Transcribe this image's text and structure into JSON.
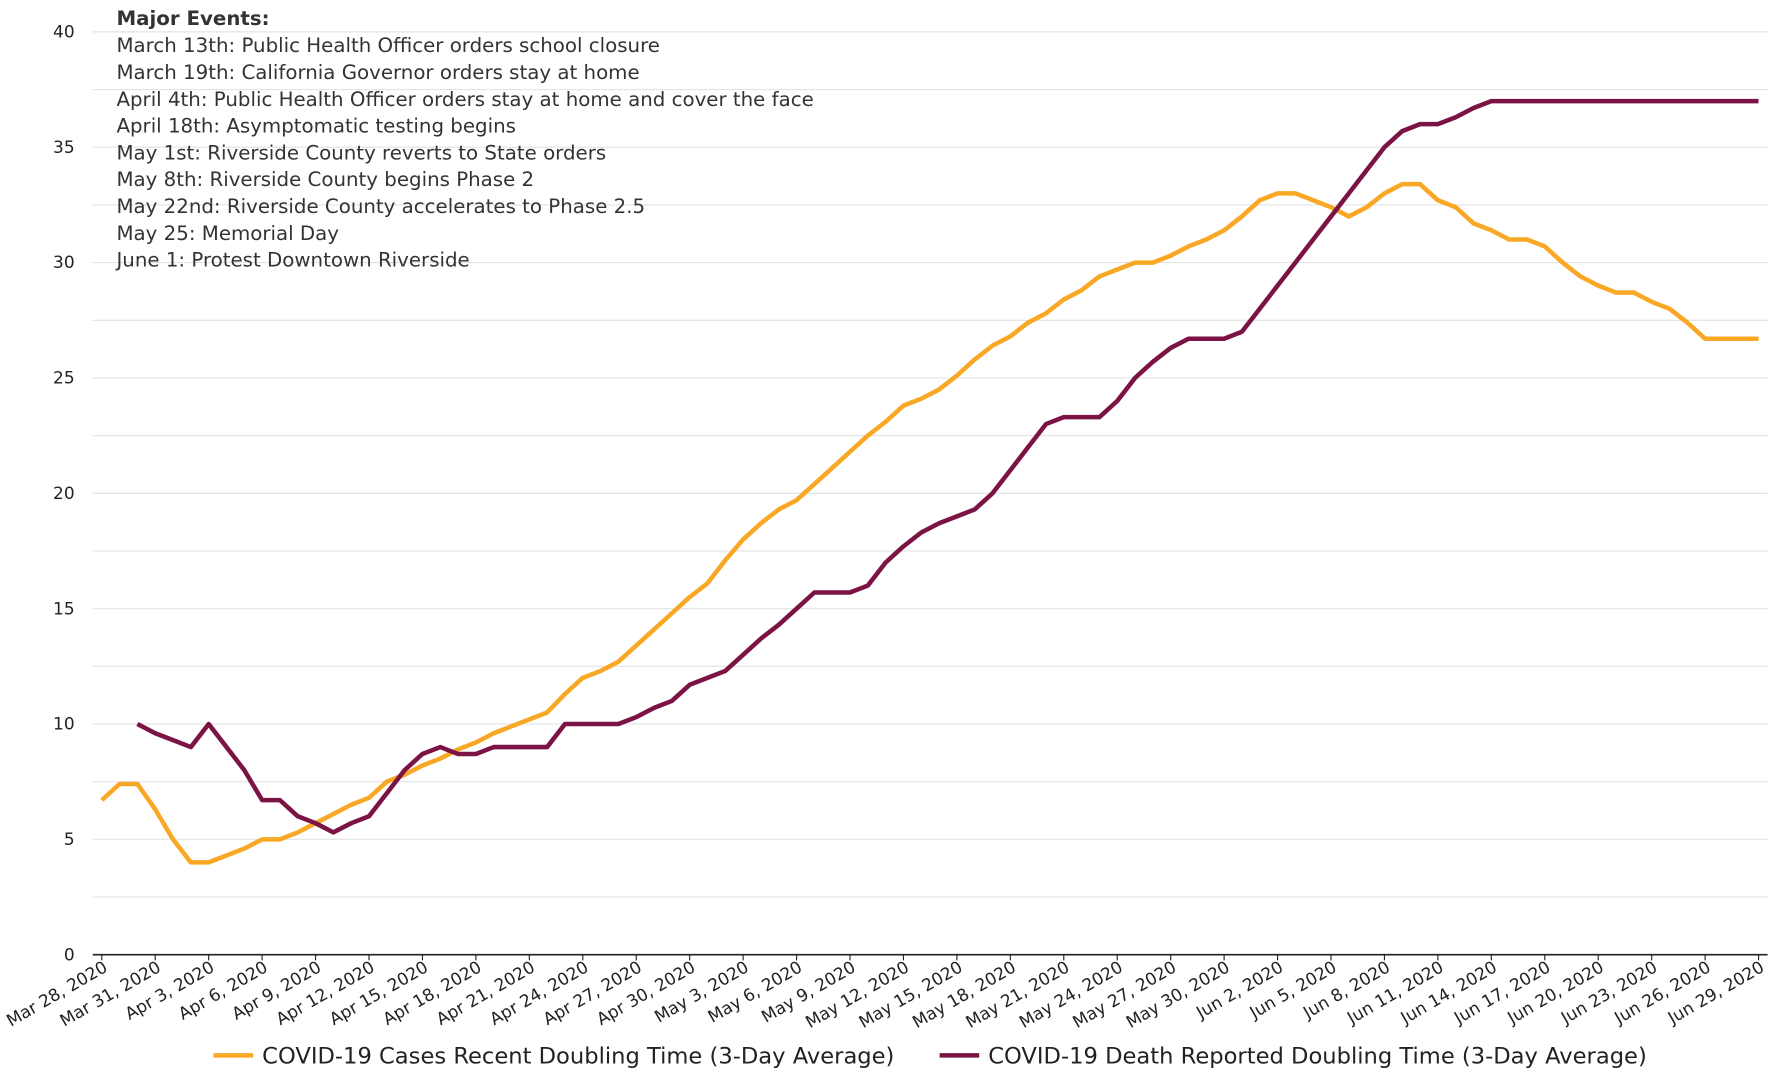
{
  "chart_data": {
    "type": "line",
    "annotation": {
      "title": "Major Events:",
      "lines": [
        "March 13th: Public Health Officer orders school closure",
        "March 19th: California Governor orders stay at home",
        "April 4th: Public Health Officer orders stay at home and cover the face",
        "April 18th: Asymptomatic testing begins",
        "May 1st: Riverside County reverts to State orders",
        "May 8th: Riverside County begins Phase 2",
        "May 22nd: Riverside County accelerates to Phase 2.5",
        "May 25: Memorial Day",
        "June 1: Protest Downtown Riverside"
      ]
    },
    "categories": [
      "Mar 28, 2020",
      null,
      null,
      "Mar 31, 2020",
      null,
      null,
      "Apr 3, 2020",
      null,
      null,
      "Apr 6, 2020",
      null,
      null,
      "Apr 9, 2020",
      null,
      null,
      "Apr 12, 2020",
      null,
      null,
      "Apr 15, 2020",
      null,
      null,
      "Apr 18, 2020",
      null,
      null,
      "Apr 21, 2020",
      null,
      null,
      "Apr 24, 2020",
      null,
      null,
      "Apr 27, 2020",
      null,
      null,
      "Apr 30, 2020",
      null,
      null,
      "May 3, 2020",
      null,
      null,
      "May 6, 2020",
      null,
      null,
      "May 9, 2020",
      null,
      null,
      "May 12, 2020",
      null,
      null,
      "May 15, 2020",
      null,
      null,
      "May 18, 2020",
      null,
      null,
      "May 21, 2020",
      null,
      null,
      "May 24, 2020",
      null,
      null,
      "May 27, 2020",
      null,
      null,
      "May 30, 2020",
      null,
      null,
      "Jun 2, 2020",
      null,
      null,
      "Jun 5, 2020",
      null,
      null,
      "Jun 8, 2020",
      null,
      null,
      "Jun 11, 2020",
      null,
      null,
      "Jun 14, 2020",
      null,
      null,
      "Jun 17, 2020",
      null,
      null,
      "Jun 20, 2020",
      null,
      null,
      "Jun 23, 2020",
      null,
      null,
      "Jun 26, 2020",
      null,
      null,
      "Jun 29, 2020"
    ],
    "series": [
      {
        "name": "COVID-19 Cases Recent Doubling Time (3-Day Average)",
        "color": "#f9a825",
        "values": [
          6.7,
          7.4,
          7.4,
          6.3,
          5.0,
          4.0,
          4.0,
          4.3,
          4.6,
          5.0,
          5.0,
          5.3,
          5.7,
          6.1,
          6.5,
          6.8,
          7.5,
          7.8,
          8.2,
          8.5,
          8.9,
          9.2,
          9.6,
          9.9,
          10.2,
          10.5,
          11.3,
          12.0,
          12.3,
          12.7,
          13.4,
          14.1,
          14.8,
          15.5,
          16.1,
          17.1,
          18.0,
          18.7,
          19.3,
          19.7,
          20.4,
          21.1,
          21.8,
          22.5,
          23.1,
          23.8,
          24.1,
          24.5,
          25.1,
          25.8,
          26.4,
          26.8,
          27.4,
          27.8,
          28.4,
          28.8,
          29.4,
          29.7,
          30.0,
          30.0,
          30.3,
          30.7,
          31.0,
          31.4,
          32.0,
          32.7,
          33.0,
          33.0,
          32.7,
          32.4,
          32.0,
          32.4,
          33.0,
          33.4,
          33.4,
          32.7,
          32.4,
          31.7,
          31.4,
          31.0,
          31.0,
          30.7,
          30.0,
          29.4,
          29.0,
          28.7,
          28.7,
          28.3,
          28.0,
          27.4,
          26.7,
          26.7,
          26.7,
          26.7
        ]
      },
      {
        "name": "COVID-19 Death Reported Doubling Time (3-Day Average)",
        "color": "#7b1345",
        "values": [
          null,
          null,
          10.0,
          9.6,
          9.3,
          9.0,
          10.0,
          9.0,
          8.0,
          6.7,
          6.7,
          6.0,
          5.7,
          5.3,
          5.7,
          6.0,
          7.0,
          8.0,
          8.7,
          9.0,
          8.7,
          8.7,
          9.0,
          9.0,
          9.0,
          9.0,
          10.0,
          10.0,
          10.0,
          10.0,
          10.3,
          10.7,
          11.0,
          11.7,
          12.0,
          12.3,
          13.0,
          13.7,
          14.3,
          15.0,
          15.7,
          15.7,
          15.7,
          16.0,
          17.0,
          17.7,
          18.3,
          18.7,
          19.0,
          19.3,
          20.0,
          21.0,
          22.0,
          23.0,
          23.3,
          23.3,
          23.3,
          24.0,
          25.0,
          25.7,
          26.3,
          26.7,
          26.7,
          26.7,
          27.0,
          28.0,
          29.0,
          30.0,
          31.0,
          32.0,
          33.0,
          34.0,
          35.0,
          35.7,
          36.0,
          36.0,
          36.3,
          36.7,
          37.0,
          37.0,
          37.0,
          37.0,
          37.0,
          37.0,
          37.0,
          37.0,
          37.0,
          37.0,
          37.0,
          37.0,
          37.0,
          37.0,
          37.0,
          37.0
        ]
      }
    ],
    "ylim": [
      0,
      40
    ],
    "yticks": [
      0,
      5,
      10,
      15,
      20,
      25,
      30,
      35,
      40
    ],
    "y_minor_ticks": [
      2.5,
      7.5,
      12.5,
      17.5,
      22.5,
      27.5,
      32.5,
      37.5
    ],
    "grid": true,
    "legend": "bottom"
  }
}
